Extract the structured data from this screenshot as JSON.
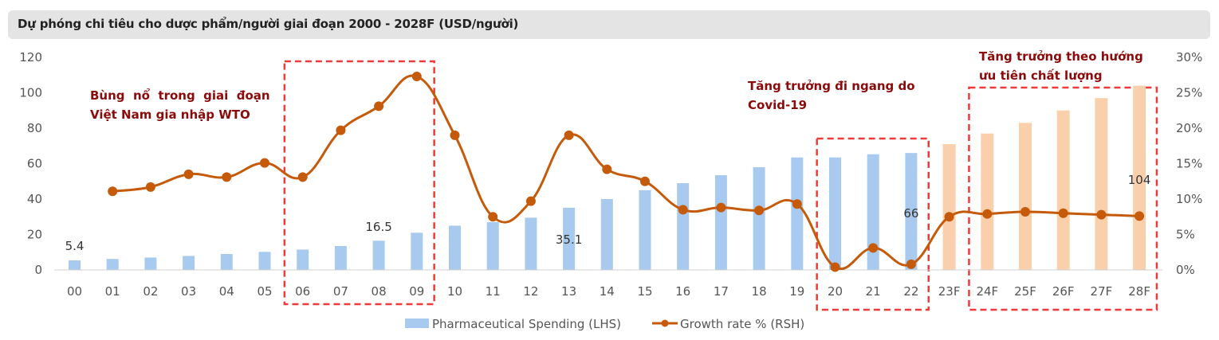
{
  "header": {
    "title": "Dự phóng chi tiêu cho dược phẩm/người giai đoạn 2000 - 2028F (USD/người)"
  },
  "chart_data": {
    "type": "bar",
    "title": "Dự phóng chi tiêu cho dược phẩm/người giai đoạn 2000 - 2028F (USD/người)",
    "xlabel": "",
    "ylabel": "",
    "ylim": [
      0,
      120
    ],
    "y2lim": [
      0,
      30
    ],
    "yticks": [
      "0",
      "20",
      "40",
      "60",
      "80",
      "100",
      "120"
    ],
    "y2ticks": [
      "0%",
      "5%",
      "10%",
      "15%",
      "20%",
      "25%",
      "30%"
    ],
    "categories": [
      "00",
      "01",
      "02",
      "03",
      "04",
      "05",
      "06",
      "07",
      "08",
      "09",
      "10",
      "11",
      "12",
      "13",
      "14",
      "15",
      "16",
      "17",
      "18",
      "19",
      "20",
      "21",
      "22",
      "23F",
      "24F",
      "25F",
      "26F",
      "27F",
      "28F"
    ],
    "grid": false,
    "legend_position": "bottom-center",
    "series": [
      {
        "name": "Pharmaceutical Spending (LHS)",
        "type": "bar",
        "axis": "left",
        "color": "#a8caee",
        "forecast_color": "#f9d0ab",
        "values": [
          5.4,
          6.2,
          7.0,
          7.9,
          9.0,
          10.2,
          11.5,
          13.5,
          16.5,
          21.0,
          25.0,
          27.0,
          29.5,
          35.1,
          40.0,
          45.0,
          49.0,
          53.5,
          58.0,
          63.5,
          63.5,
          65.3,
          66.0,
          71.0,
          77.0,
          83.0,
          90.0,
          97.0,
          104.0
        ],
        "forecast_from": "23F",
        "data_labels": [
          {
            "category": "00",
            "text": "5.4"
          },
          {
            "category": "08",
            "text": "16.5"
          },
          {
            "category": "13",
            "text": "35.1"
          },
          {
            "category": "22",
            "text": "66"
          },
          {
            "category": "28F",
            "text": "104"
          }
        ]
      },
      {
        "name": "Growth rate % (RSH)",
        "type": "line",
        "axis": "right",
        "color": "#c55a0b",
        "smooth": true,
        "values": [
          null,
          11.1,
          11.7,
          13.5,
          13.1,
          15.1,
          13.1,
          19.7,
          23.1,
          27.3,
          19.0,
          7.5,
          9.7,
          19.0,
          14.2,
          12.5,
          8.5,
          8.8,
          8.4,
          9.3,
          0.4,
          3.1,
          0.8,
          7.5,
          7.9,
          8.2,
          8.0,
          7.8,
          7.6
        ]
      }
    ],
    "annotations": [
      {
        "lines": [
          "Bùng  nổ  trong  giai  đoạn",
          "Việt Nam gia nhập WTO"
        ],
        "color": "#8b0a0a"
      },
      {
        "lines": [
          "Tăng trưởng đi ngang do",
          "Covid-19"
        ],
        "color": "#8b0a0a"
      },
      {
        "lines": [
          "Tăng trưởng theo hướng",
          "ưu tiên chất lượng"
        ],
        "color": "#8b0a0a"
      }
    ],
    "highlight_boxes": [
      {
        "from": "06",
        "to": "09",
        "color": "#ee3a3a"
      },
      {
        "from": "20",
        "to": "22",
        "color": "#ee3a3a"
      },
      {
        "from": "24F",
        "to": "28F",
        "color": "#ee3a3a"
      }
    ]
  }
}
